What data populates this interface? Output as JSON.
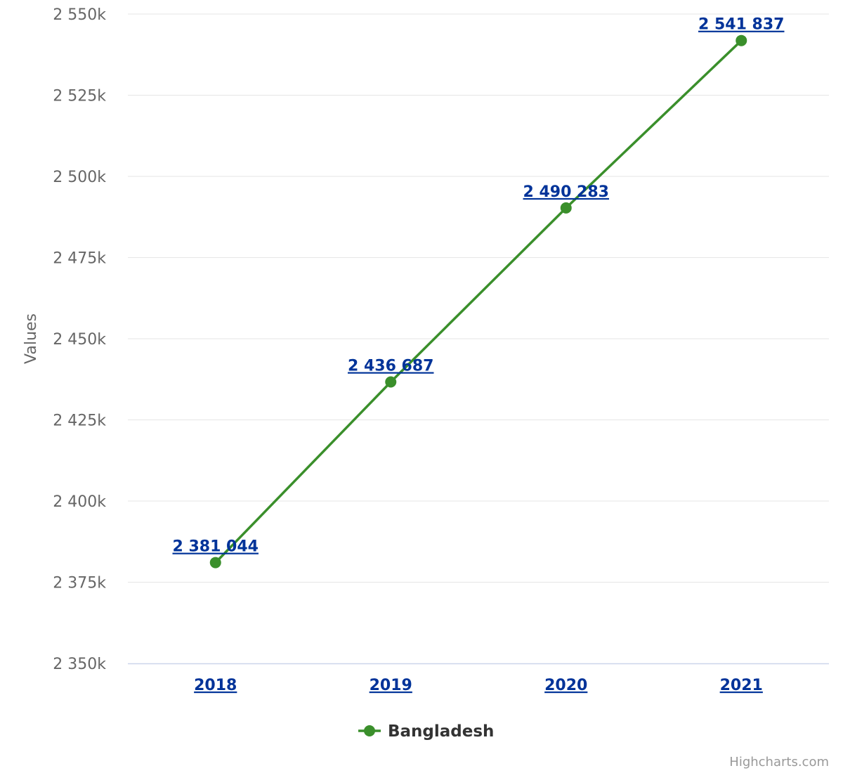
{
  "colors": {
    "series": "#3a8f2b",
    "link": "#003399",
    "grid": "#e6e6e6",
    "axis_line": "#ccd6eb",
    "tick_text": "#666666"
  },
  "credits": "Highcharts.com",
  "chart_data": {
    "type": "line",
    "title": "",
    "xlabel": "",
    "ylabel": "Values",
    "categories": [
      "2018",
      "2019",
      "2020",
      "2021"
    ],
    "series": [
      {
        "name": "Bangladesh",
        "values": [
          2381044,
          2436687,
          2490283,
          2541837
        ],
        "labels": [
          "2 381 044",
          "2 436 687",
          "2 490 283",
          "2 541 837"
        ]
      }
    ],
    "ylim": [
      2350000,
      2550000
    ],
    "yticks": [
      2350000,
      2375000,
      2400000,
      2425000,
      2450000,
      2475000,
      2500000,
      2525000,
      2550000
    ],
    "ytick_labels": [
      "2 350k",
      "2 375k",
      "2 400k",
      "2 425k",
      "2 450k",
      "2 475k",
      "2 500k",
      "2 525k",
      "2 550k"
    ],
    "grid": true,
    "legend": "bottom-center"
  }
}
